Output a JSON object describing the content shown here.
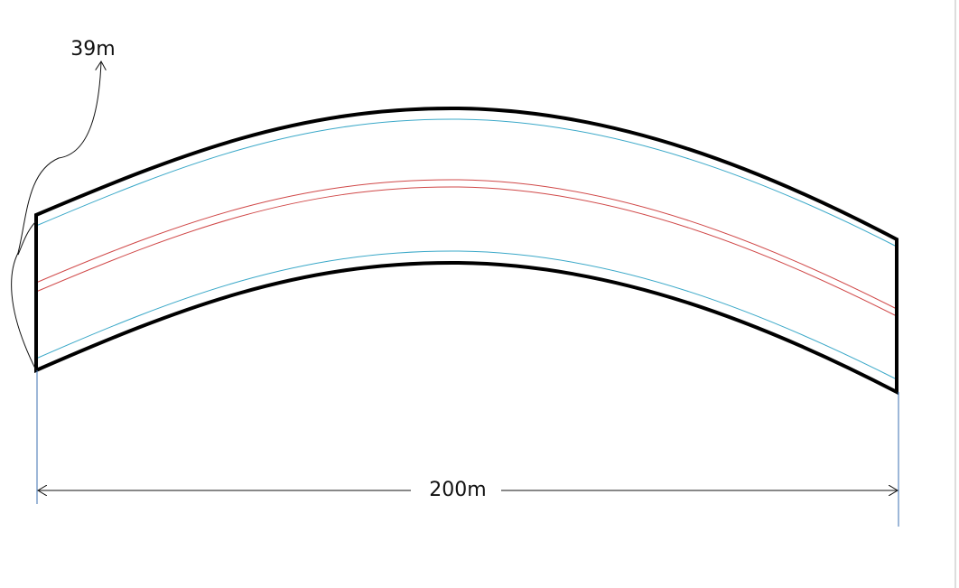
{
  "dimensions": {
    "height": "39m",
    "width": "200m"
  }
}
